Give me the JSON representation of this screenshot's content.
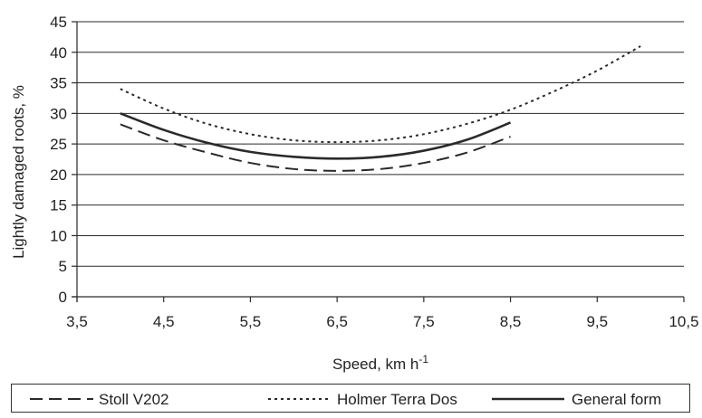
{
  "chart_data": {
    "type": "line",
    "xlabel": "Speed, km h",
    "xlabel_sup": "-1",
    "ylabel": "Lightly damaged roots, %",
    "xlim": [
      3.5,
      10.5
    ],
    "ylim": [
      0,
      45
    ],
    "x_ticks": [
      "3,5",
      "4,5",
      "5,5",
      "6,5",
      "7,5",
      "8,5",
      "9,5",
      "10,5"
    ],
    "x_tick_values": [
      3.5,
      4.5,
      5.5,
      6.5,
      7.5,
      8.5,
      9.5,
      10.5
    ],
    "y_ticks": [
      "0",
      "5",
      "10",
      "15",
      "20",
      "25",
      "30",
      "35",
      "40",
      "45"
    ],
    "y_tick_values": [
      0,
      5,
      10,
      15,
      20,
      25,
      30,
      35,
      40,
      45
    ],
    "grid": "horizontal",
    "legend": "bottom",
    "series": [
      {
        "name": "Stoll V202",
        "style": "dashed",
        "color": "#2a2a2a",
        "x": [
          4.0,
          4.5,
          5.0,
          5.5,
          6.0,
          6.5,
          7.0,
          7.5,
          8.0,
          8.5
        ],
        "y": [
          28.2,
          25.6,
          23.6,
          21.9,
          20.9,
          20.6,
          20.9,
          21.9,
          23.6,
          26.2
        ]
      },
      {
        "name": "Holmer Terra Dos",
        "style": "dotted",
        "color": "#2a2a2a",
        "x": [
          4.0,
          4.5,
          5.0,
          5.5,
          6.0,
          6.5,
          7.0,
          7.5,
          8.0,
          8.5,
          9.0,
          9.5,
          10.0
        ],
        "y": [
          34.0,
          30.8,
          28.3,
          26.6,
          25.6,
          25.3,
          25.6,
          26.6,
          28.3,
          30.6,
          33.6,
          37.0,
          41.0
        ]
      },
      {
        "name": "General form",
        "style": "solid",
        "color": "#2a2a2a",
        "x": [
          4.0,
          4.5,
          5.0,
          5.5,
          6.0,
          6.5,
          7.0,
          7.5,
          8.0,
          8.5
        ],
        "y": [
          30.0,
          27.3,
          25.2,
          23.7,
          22.9,
          22.6,
          22.9,
          23.9,
          25.7,
          28.5
        ]
      }
    ]
  }
}
